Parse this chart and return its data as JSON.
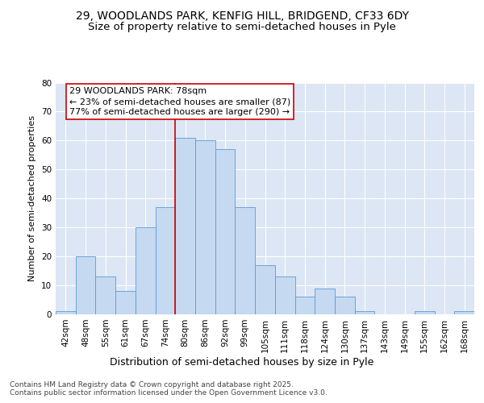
{
  "title_line1": "29, WOODLANDS PARK, KENFIG HILL, BRIDGEND, CF33 6DY",
  "title_line2": "Size of property relative to semi-detached houses in Pyle",
  "xlabel": "Distribution of semi-detached houses by size in Pyle",
  "ylabel": "Number of semi-detached properties",
  "bar_labels": [
    "42sqm",
    "48sqm",
    "55sqm",
    "61sqm",
    "67sqm",
    "74sqm",
    "80sqm",
    "86sqm",
    "92sqm",
    "99sqm",
    "105sqm",
    "111sqm",
    "118sqm",
    "124sqm",
    "130sqm",
    "137sqm",
    "143sqm",
    "149sqm",
    "155sqm",
    "162sqm",
    "168sqm"
  ],
  "bar_values": [
    1,
    20,
    13,
    8,
    30,
    37,
    61,
    60,
    57,
    37,
    17,
    13,
    6,
    9,
    6,
    1,
    0,
    0,
    1,
    0,
    1
  ],
  "bar_color": "#c5d9f0",
  "bar_edge_color": "#5b9bd5",
  "vline_x": 6,
  "vline_color": "#cc0000",
  "annotation_text": "29 WOODLANDS PARK: 78sqm\n← 23% of semi-detached houses are smaller (87)\n77% of semi-detached houses are larger (290) →",
  "annotation_box_color": "#ffffff",
  "annotation_box_edge": "#cc0000",
  "ylim": [
    0,
    80
  ],
  "yticks": [
    0,
    10,
    20,
    30,
    40,
    50,
    60,
    70,
    80
  ],
  "plot_background": "#dce6f5",
  "footer_text": "Contains HM Land Registry data © Crown copyright and database right 2025.\nContains public sector information licensed under the Open Government Licence v3.0.",
  "title_fontsize": 10,
  "subtitle_fontsize": 9.5,
  "xlabel_fontsize": 9,
  "ylabel_fontsize": 8,
  "tick_fontsize": 7.5,
  "annotation_fontsize": 8,
  "footer_fontsize": 6.5
}
